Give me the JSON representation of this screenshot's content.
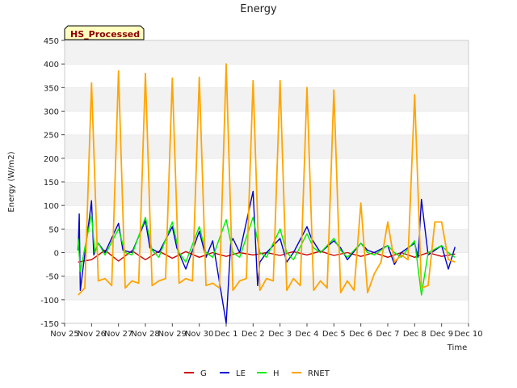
{
  "chart_data": {
    "type": "line",
    "title": "Energy",
    "xlabel": "Time",
    "ylabel": "Energy (W/m2)",
    "badge": "HS_Processed",
    "ylim": [
      -150,
      450
    ],
    "xlim": [
      "2022-11-25",
      "2022-12-10"
    ],
    "yticks": [
      -150,
      -100,
      -50,
      0,
      50,
      100,
      150,
      200,
      250,
      300,
      350,
      400,
      450
    ],
    "xticks": [
      "Nov 25",
      "Nov 26",
      "Nov 27",
      "Nov 28",
      "Nov 29",
      "Nov 30",
      "Dec 1",
      "Dec 2",
      "Dec 3",
      "Dec 4",
      "Dec 5",
      "Dec 6",
      "Dec 7",
      "Dec 8",
      "Dec 9",
      "Dec 10"
    ],
    "grid": "horizontal alternating bands",
    "legend_position": "bottom",
    "series": [
      {
        "name": "G",
        "color": "#cc0000",
        "x": [
          "2022-11-25T12:00",
          "2022-11-26T00:00",
          "2022-11-26T12:00",
          "2022-11-27T00:00",
          "2022-11-27T12:00",
          "2022-11-28T00:00",
          "2022-11-28T12:00",
          "2022-11-29T00:00",
          "2022-11-29T12:00",
          "2022-11-30T00:00",
          "2022-11-30T12:00",
          "2022-12-01T00:00",
          "2022-12-01T12:00",
          "2022-12-02T00:00",
          "2022-12-02T12:00",
          "2022-12-03T00:00",
          "2022-12-03T12:00",
          "2022-12-04T00:00",
          "2022-12-04T12:00",
          "2022-12-05T00:00",
          "2022-12-05T12:00",
          "2022-12-06T00:00",
          "2022-12-06T12:00",
          "2022-12-07T00:00",
          "2022-12-07T12:00",
          "2022-12-08T00:00",
          "2022-12-08T12:00",
          "2022-12-09T00:00",
          "2022-12-09T12:00"
        ],
        "y": [
          -20,
          -15,
          5,
          -18,
          4,
          -15,
          3,
          -12,
          2,
          -10,
          0,
          -8,
          0,
          -5,
          0,
          -6,
          2,
          -5,
          3,
          -6,
          0,
          -8,
          0,
          -10,
          0,
          -10,
          0,
          -8,
          -3
        ]
      },
      {
        "name": "LE",
        "color": "#0000cc",
        "x": [
          "2022-11-25T12:00",
          "2022-11-25T13:00",
          "2022-11-25T14:00",
          "2022-11-26T00:00",
          "2022-11-26T02:00",
          "2022-11-26T06:00",
          "2022-11-26T12:00",
          "2022-11-27T00:00",
          "2022-11-27T04:00",
          "2022-11-27T12:00",
          "2022-11-28T00:00",
          "2022-11-28T04:00",
          "2022-11-28T12:00",
          "2022-11-29T00:00",
          "2022-11-29T04:00",
          "2022-11-29T12:00",
          "2022-11-30T00:00",
          "2022-11-30T06:00",
          "2022-11-30T12:00",
          "2022-12-01T00:00",
          "2022-12-01T04:00",
          "2022-12-01T06:00",
          "2022-12-01T12:00",
          "2022-12-02T00:00",
          "2022-12-02T04:00",
          "2022-12-02T06:00",
          "2022-12-02T12:00",
          "2022-12-03T00:00",
          "2022-12-03T06:00",
          "2022-12-03T12:00",
          "2022-12-04T00:00",
          "2022-12-04T04:00",
          "2022-12-04T12:00",
          "2022-12-05T00:00",
          "2022-12-05T06:00",
          "2022-12-05T12:00",
          "2022-12-06T00:00",
          "2022-12-06T06:00",
          "2022-12-06T12:00",
          "2022-12-07T00:00",
          "2022-12-07T06:00",
          "2022-12-07T12:00",
          "2022-12-08T00:00",
          "2022-12-08T03:00",
          "2022-12-08T06:00",
          "2022-12-08T12:00",
          "2022-12-09T00:00",
          "2022-12-09T06:00",
          "2022-12-09T12:00"
        ],
        "y": [
          5,
          82,
          -80,
          110,
          -5,
          20,
          0,
          62,
          5,
          0,
          68,
          10,
          0,
          55,
          10,
          -35,
          45,
          -10,
          25,
          -150,
          20,
          30,
          0,
          130,
          -70,
          -20,
          0,
          30,
          -20,
          0,
          55,
          30,
          0,
          25,
          10,
          -15,
          20,
          5,
          0,
          15,
          -25,
          0,
          20,
          -10,
          113,
          -5,
          15,
          -35,
          12
        ]
      },
      {
        "name": "H",
        "color": "#00ee00",
        "x": [
          "2022-11-25T12:00",
          "2022-11-25T14:00",
          "2022-11-25T18:00",
          "2022-11-26T00:00",
          "2022-11-26T03:00",
          "2022-11-26T06:00",
          "2022-11-26T12:00",
          "2022-11-27T00:00",
          "2022-11-27T06:00",
          "2022-11-27T12:00",
          "2022-11-28T00:00",
          "2022-11-28T06:00",
          "2022-11-28T12:00",
          "2022-11-29T00:00",
          "2022-11-29T06:00",
          "2022-11-29T12:00",
          "2022-11-30T00:00",
          "2022-11-30T06:00",
          "2022-11-30T12:00",
          "2022-12-01T00:00",
          "2022-12-01T06:00",
          "2022-12-01T12:00",
          "2022-12-02T00:00",
          "2022-12-02T06:00",
          "2022-12-02T12:00",
          "2022-12-03T00:00",
          "2022-12-03T06:00",
          "2022-12-03T12:00",
          "2022-12-04T00:00",
          "2022-12-04T06:00",
          "2022-12-04T12:00",
          "2022-12-05T00:00",
          "2022-12-05T06:00",
          "2022-12-05T12:00",
          "2022-12-06T00:00",
          "2022-12-06T06:00",
          "2022-12-06T12:00",
          "2022-12-07T00:00",
          "2022-12-07T06:00",
          "2022-12-07T12:00",
          "2022-12-08T00:00",
          "2022-12-08T06:00",
          "2022-12-08T12:00",
          "2022-12-09T00:00",
          "2022-12-09T06:00",
          "2022-12-09T12:00"
        ],
        "y": [
          30,
          -40,
          10,
          80,
          0,
          20,
          -5,
          50,
          0,
          -5,
          75,
          5,
          -10,
          65,
          0,
          -20,
          55,
          0,
          -10,
          70,
          0,
          -10,
          75,
          0,
          -10,
          50,
          0,
          -15,
          40,
          10,
          0,
          30,
          5,
          -10,
          20,
          0,
          -5,
          15,
          0,
          -10,
          25,
          -90,
          0,
          15,
          0,
          -10
        ]
      },
      {
        "name": "RNET",
        "color": "#ffa500",
        "x": [
          "2022-11-25T12:00",
          "2022-11-25T18:00",
          "2022-11-26T00:00",
          "2022-11-26T06:00",
          "2022-11-26T12:00",
          "2022-11-26T18:00",
          "2022-11-27T00:00",
          "2022-11-27T06:00",
          "2022-11-27T12:00",
          "2022-11-27T18:00",
          "2022-11-28T00:00",
          "2022-11-28T06:00",
          "2022-11-28T12:00",
          "2022-11-28T18:00",
          "2022-11-29T00:00",
          "2022-11-29T06:00",
          "2022-11-29T12:00",
          "2022-11-29T18:00",
          "2022-11-30T00:00",
          "2022-11-30T06:00",
          "2022-11-30T12:00",
          "2022-11-30T18:00",
          "2022-12-01T00:00",
          "2022-12-01T06:00",
          "2022-12-01T12:00",
          "2022-12-01T18:00",
          "2022-12-02T00:00",
          "2022-12-02T06:00",
          "2022-12-02T12:00",
          "2022-12-02T18:00",
          "2022-12-03T00:00",
          "2022-12-03T06:00",
          "2022-12-03T12:00",
          "2022-12-03T18:00",
          "2022-12-04T00:00",
          "2022-12-04T06:00",
          "2022-12-04T12:00",
          "2022-12-04T18:00",
          "2022-12-05T00:00",
          "2022-12-05T06:00",
          "2022-12-05T12:00",
          "2022-12-05T18:00",
          "2022-12-06T00:00",
          "2022-12-06T06:00",
          "2022-12-06T12:00",
          "2022-12-06T18:00",
          "2022-12-07T00:00",
          "2022-12-07T06:00",
          "2022-12-07T12:00",
          "2022-12-07T18:00",
          "2022-12-08T00:00",
          "2022-12-08T06:00",
          "2022-12-08T12:00",
          "2022-12-08T18:00",
          "2022-12-09T00:00",
          "2022-12-09T06:00",
          "2022-12-09T12:00"
        ],
        "y": [
          -90,
          -75,
          360,
          -60,
          -55,
          -70,
          385,
          -75,
          -60,
          -65,
          380,
          -70,
          -60,
          -55,
          370,
          -65,
          -55,
          -60,
          372,
          -70,
          -65,
          -75,
          400,
          -80,
          -60,
          -55,
          365,
          -80,
          -55,
          -60,
          365,
          -80,
          -55,
          -70,
          350,
          -80,
          -60,
          -75,
          345,
          -85,
          -60,
          -80,
          105,
          -85,
          -45,
          -20,
          65,
          -20,
          -5,
          -15,
          335,
          -75,
          -70,
          65,
          65,
          -15,
          -20
        ]
      }
    ]
  }
}
